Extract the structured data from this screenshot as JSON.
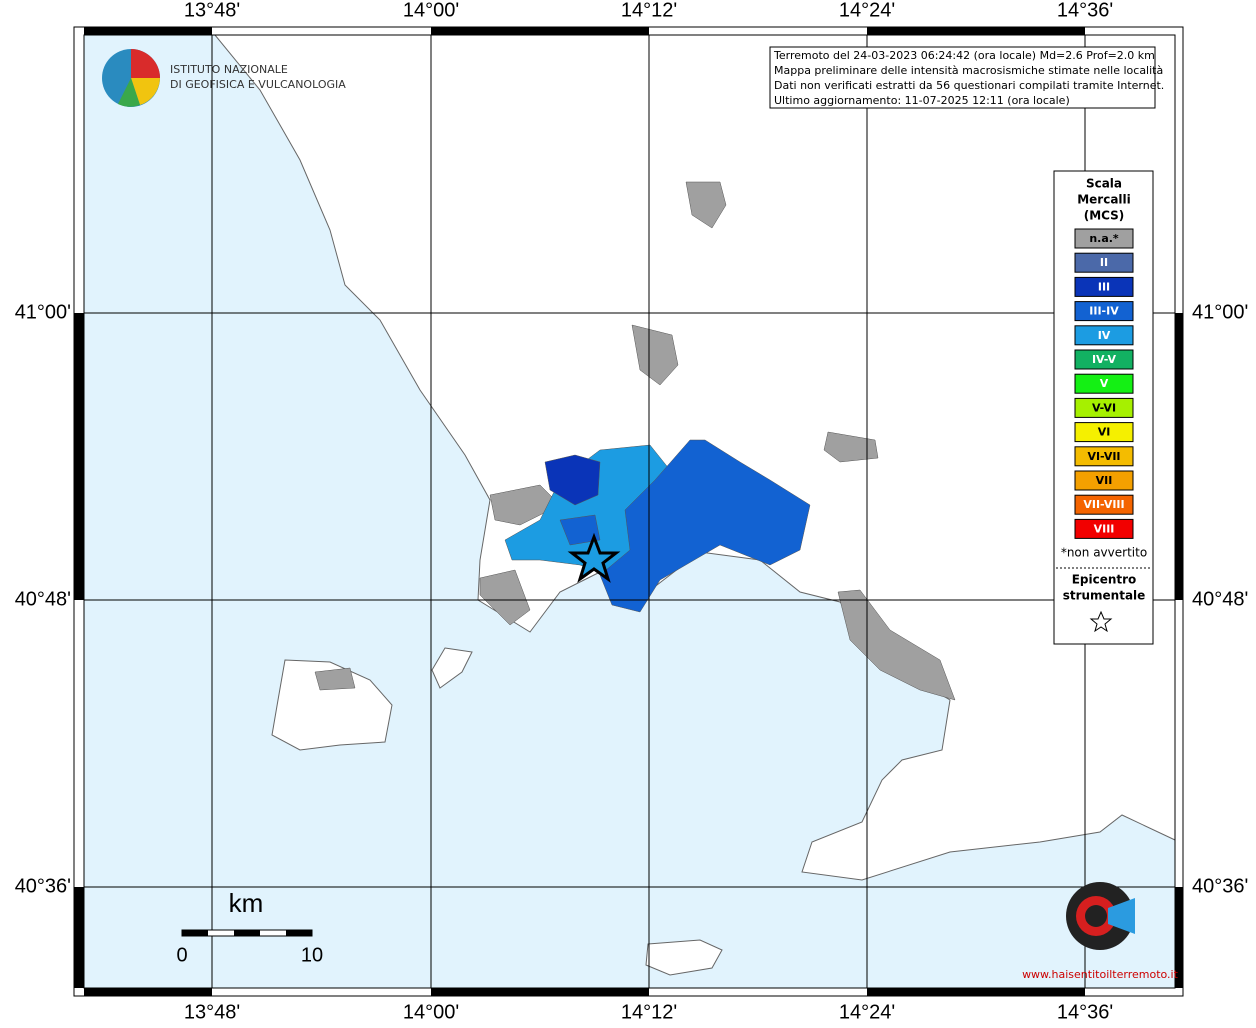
{
  "logo": {
    "line1": "ISTITUTO NAZIONALE",
    "line2": "DI GEOFISICA E VULCANOLOGIA"
  },
  "info": [
    "Terremoto del 24-03-2023 06:24:42 (ora locale) Md=2.6 Prof=2.0 km",
    "Mappa preliminare delle intensità macrosismiche stimate nelle località",
    "Dati non verificati estratti da 56 questionari compilati tramite Internet.",
    "Ultimo aggiornamento: 11-07-2025 12:11 (ora locale)"
  ],
  "lon_labels": [
    "13°48'",
    "14°00'",
    "14°12'",
    "14°24'",
    "14°36'"
  ],
  "lat_labels": [
    "41°00'",
    "40°48'",
    "40°36'"
  ],
  "legend": {
    "title": [
      "Scala",
      "Mercalli",
      "(MCS)"
    ],
    "items": [
      {
        "label": "n.a.*",
        "color": "#a0a0a0"
      },
      {
        "label": "II",
        "color": "#4b69a9"
      },
      {
        "label": "III",
        "color": "#0a34b8"
      },
      {
        "label": "III-IV",
        "color": "#1262d2"
      },
      {
        "label": "IV",
        "color": "#1c9ce2"
      },
      {
        "label": "IV-V",
        "color": "#12b162"
      },
      {
        "label": "V",
        "color": "#14f014"
      },
      {
        "label": "V-VI",
        "color": "#a6f000"
      },
      {
        "label": "VI",
        "color": "#f5f000"
      },
      {
        "label": "VI-VII",
        "color": "#f4bc00"
      },
      {
        "label": "VII",
        "color": "#f4a000"
      },
      {
        "label": "VII-VIII",
        "color": "#f46400"
      },
      {
        "label": "VIII",
        "color": "#f20000"
      }
    ],
    "note": "*non avvertito",
    "epicenter": [
      "Epicentro",
      "strumentale"
    ]
  },
  "scale": {
    "unit": "km",
    "min": 0,
    "max": 10
  },
  "badge": "www.haisentitoilterremoto.it"
}
